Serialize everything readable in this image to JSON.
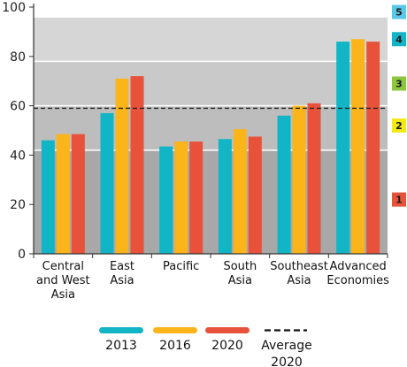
{
  "chart_data": {
    "type": "bar",
    "categories": [
      [
        "Central",
        "and West",
        "Asia"
      ],
      [
        "East",
        "Asia"
      ],
      [
        "Pacific"
      ],
      [
        "South",
        "Asia"
      ],
      [
        "Southeast",
        "Asia"
      ],
      [
        "Advanced",
        "Economies"
      ]
    ],
    "series": [
      {
        "name": "2013",
        "color": "#12b5c6",
        "values": [
          46,
          57,
          43.5,
          46.5,
          56,
          86
        ]
      },
      {
        "name": "2016",
        "color": "#fbb41a",
        "values": [
          48.5,
          71,
          45.5,
          50.5,
          60,
          87
        ]
      },
      {
        "name": "2020",
        "color": "#e8523a",
        "values": [
          48.5,
          72,
          45.5,
          47.5,
          61,
          86
        ]
      }
    ],
    "reference_line": {
      "label": "Average 2020",
      "label_lines": [
        "Average",
        "2020"
      ],
      "value": 59,
      "style": "dashed"
    },
    "ylim": [
      0,
      100
    ],
    "yticks": [
      0,
      20,
      40,
      60,
      80,
      100
    ],
    "bands": [
      {
        "label": "1",
        "from": 0,
        "to": 42,
        "bg": "#a8a8a8",
        "badge": "#e8523a"
      },
      {
        "label": "2",
        "from": 42,
        "to": 60,
        "bg": "#bdbdbd",
        "badge": "#f2e81a"
      },
      {
        "label": "3",
        "from": 60,
        "to": 78,
        "bg": "#c9c9c9",
        "badge": "#8dc63f"
      },
      {
        "label": "4",
        "from": 78,
        "to": 96,
        "bg": "#d6d6d6",
        "badge": "#12b5c6"
      },
      {
        "label": "5",
        "from": 96,
        "to": 100,
        "bg": "#ffffff",
        "badge": "#5bc8e8"
      }
    ],
    "badge_values": [
      22,
      52,
      69,
      87,
      98
    ],
    "legend_placement": "bottom",
    "title": "",
    "xlabel": "",
    "ylabel": ""
  }
}
